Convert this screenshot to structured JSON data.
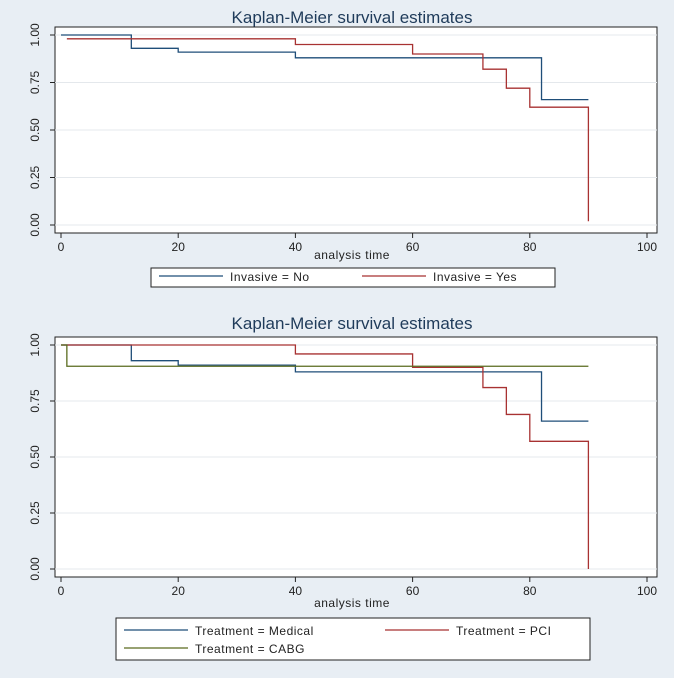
{
  "chart_data": [
    {
      "type": "line",
      "title": "Kaplan-Meier survival estimates",
      "xlabel": "analysis time",
      "ylabel": "",
      "xlim": [
        0,
        100
      ],
      "ylim": [
        0,
        1
      ],
      "xticks": [
        "0",
        "20",
        "40",
        "60",
        "80",
        "100"
      ],
      "yticks": [
        "0.00",
        "0.25",
        "0.50",
        "0.75",
        "1.00"
      ],
      "grid": true,
      "legend_position": "bottom",
      "series": [
        {
          "name": "Invasive = No",
          "color": "#1f4e79",
          "step": true,
          "points": [
            [
              0,
              1.0
            ],
            [
              12,
              0.93
            ],
            [
              20,
              0.91
            ],
            [
              40,
              0.88
            ],
            [
              82,
              0.88
            ],
            [
              82,
              0.66
            ],
            [
              90,
              0.66
            ]
          ]
        },
        {
          "name": "Invasive = Yes",
          "color": "#a83232",
          "step": true,
          "points": [
            [
              1,
              0.98
            ],
            [
              40,
              0.95
            ],
            [
              60,
              0.9
            ],
            [
              72,
              0.82
            ],
            [
              76,
              0.72
            ],
            [
              80,
              0.62
            ],
            [
              90,
              0.62
            ],
            [
              90,
              0.02
            ]
          ]
        }
      ]
    },
    {
      "type": "line",
      "title": "Kaplan-Meier survival estimates",
      "xlabel": "analysis time",
      "ylabel": "",
      "xlim": [
        0,
        100
      ],
      "ylim": [
        0,
        1
      ],
      "xticks": [
        "0",
        "20",
        "40",
        "60",
        "80",
        "100"
      ],
      "yticks": [
        "0.00",
        "0.25",
        "0.50",
        "0.75",
        "1.00"
      ],
      "grid": true,
      "legend_position": "bottom",
      "series": [
        {
          "name": "Treatment = Medical",
          "color": "#1f4e79",
          "step": true,
          "points": [
            [
              0,
              1.0
            ],
            [
              12,
              0.93
            ],
            [
              20,
              0.91
            ],
            [
              40,
              0.88
            ],
            [
              82,
              0.88
            ],
            [
              82,
              0.66
            ],
            [
              90,
              0.66
            ]
          ]
        },
        {
          "name": "Treatment = PCI",
          "color": "#a83232",
          "step": true,
          "points": [
            [
              0,
              1.0
            ],
            [
              40,
              0.96
            ],
            [
              60,
              0.9
            ],
            [
              72,
              0.81
            ],
            [
              76,
              0.69
            ],
            [
              80,
              0.57
            ],
            [
              90,
              0.57
            ],
            [
              90,
              0.0
            ]
          ]
        },
        {
          "name": "Treatment = CABG",
          "color": "#5a6b1e",
          "step": true,
          "points": [
            [
              0,
              1.0
            ],
            [
              1,
              1.0
            ],
            [
              1,
              0.905
            ],
            [
              90,
              0.905
            ]
          ]
        }
      ]
    }
  ]
}
